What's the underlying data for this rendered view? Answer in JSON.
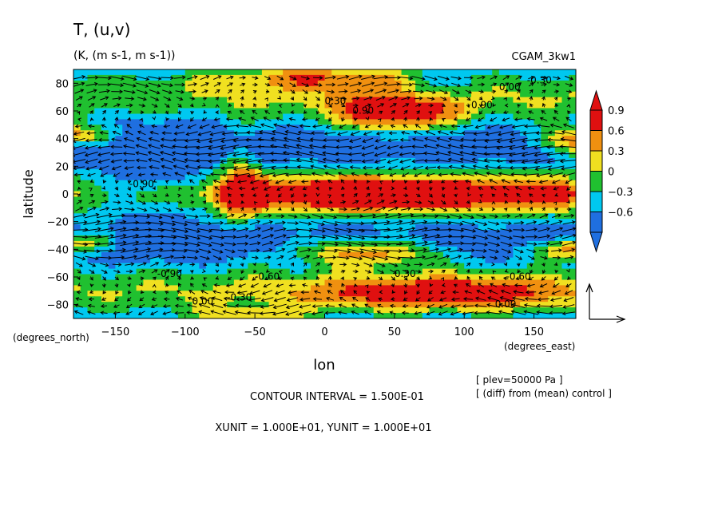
{
  "chart_data": {
    "type": "heatmap",
    "title": "T,  (u,v)",
    "subtitle": "(K,  (m s-1,  m s-1))",
    "experiment": "CGAM_3kw1",
    "xlabel": "lon",
    "ylabel": "latitude",
    "x_units_label": "(degrees_east)",
    "y_units_label": "(degrees_north)",
    "xlim": [
      -180,
      180
    ],
    "ylim": [
      -90,
      90
    ],
    "x_ticks": [
      -150,
      -100,
      -50,
      0,
      50,
      100,
      150
    ],
    "y_ticks": [
      -80,
      -60,
      -40,
      -20,
      0,
      20,
      40,
      60,
      80
    ],
    "colorbar": {
      "levels": [
        -0.6,
        -0.3,
        0,
        0.3,
        0.6,
        0.9
      ],
      "labels": [
        "-0.6",
        "-0.3",
        "0",
        "0.3",
        "0.6",
        "0.9"
      ],
      "colors": [
        "#1f6fe0",
        "#00c8f0",
        "#20c030",
        "#f0e020",
        "#f09010",
        "#e01010"
      ]
    },
    "contour_labels": [
      "-0.90",
      "-0.60",
      "-0.30",
      "0.00",
      "0.30",
      "0.60",
      "0.90"
    ],
    "grid": false,
    "legend": "right"
  },
  "footer": {
    "plev": "[ plev=50000 Pa ]",
    "diff": "[ (diff) from (mean) control ]",
    "contour_interval": "CONTOUR INTERVAL = 1.500E-01",
    "units": "XUNIT = 1.000E+01, YUNIT = 1.000E+01"
  }
}
